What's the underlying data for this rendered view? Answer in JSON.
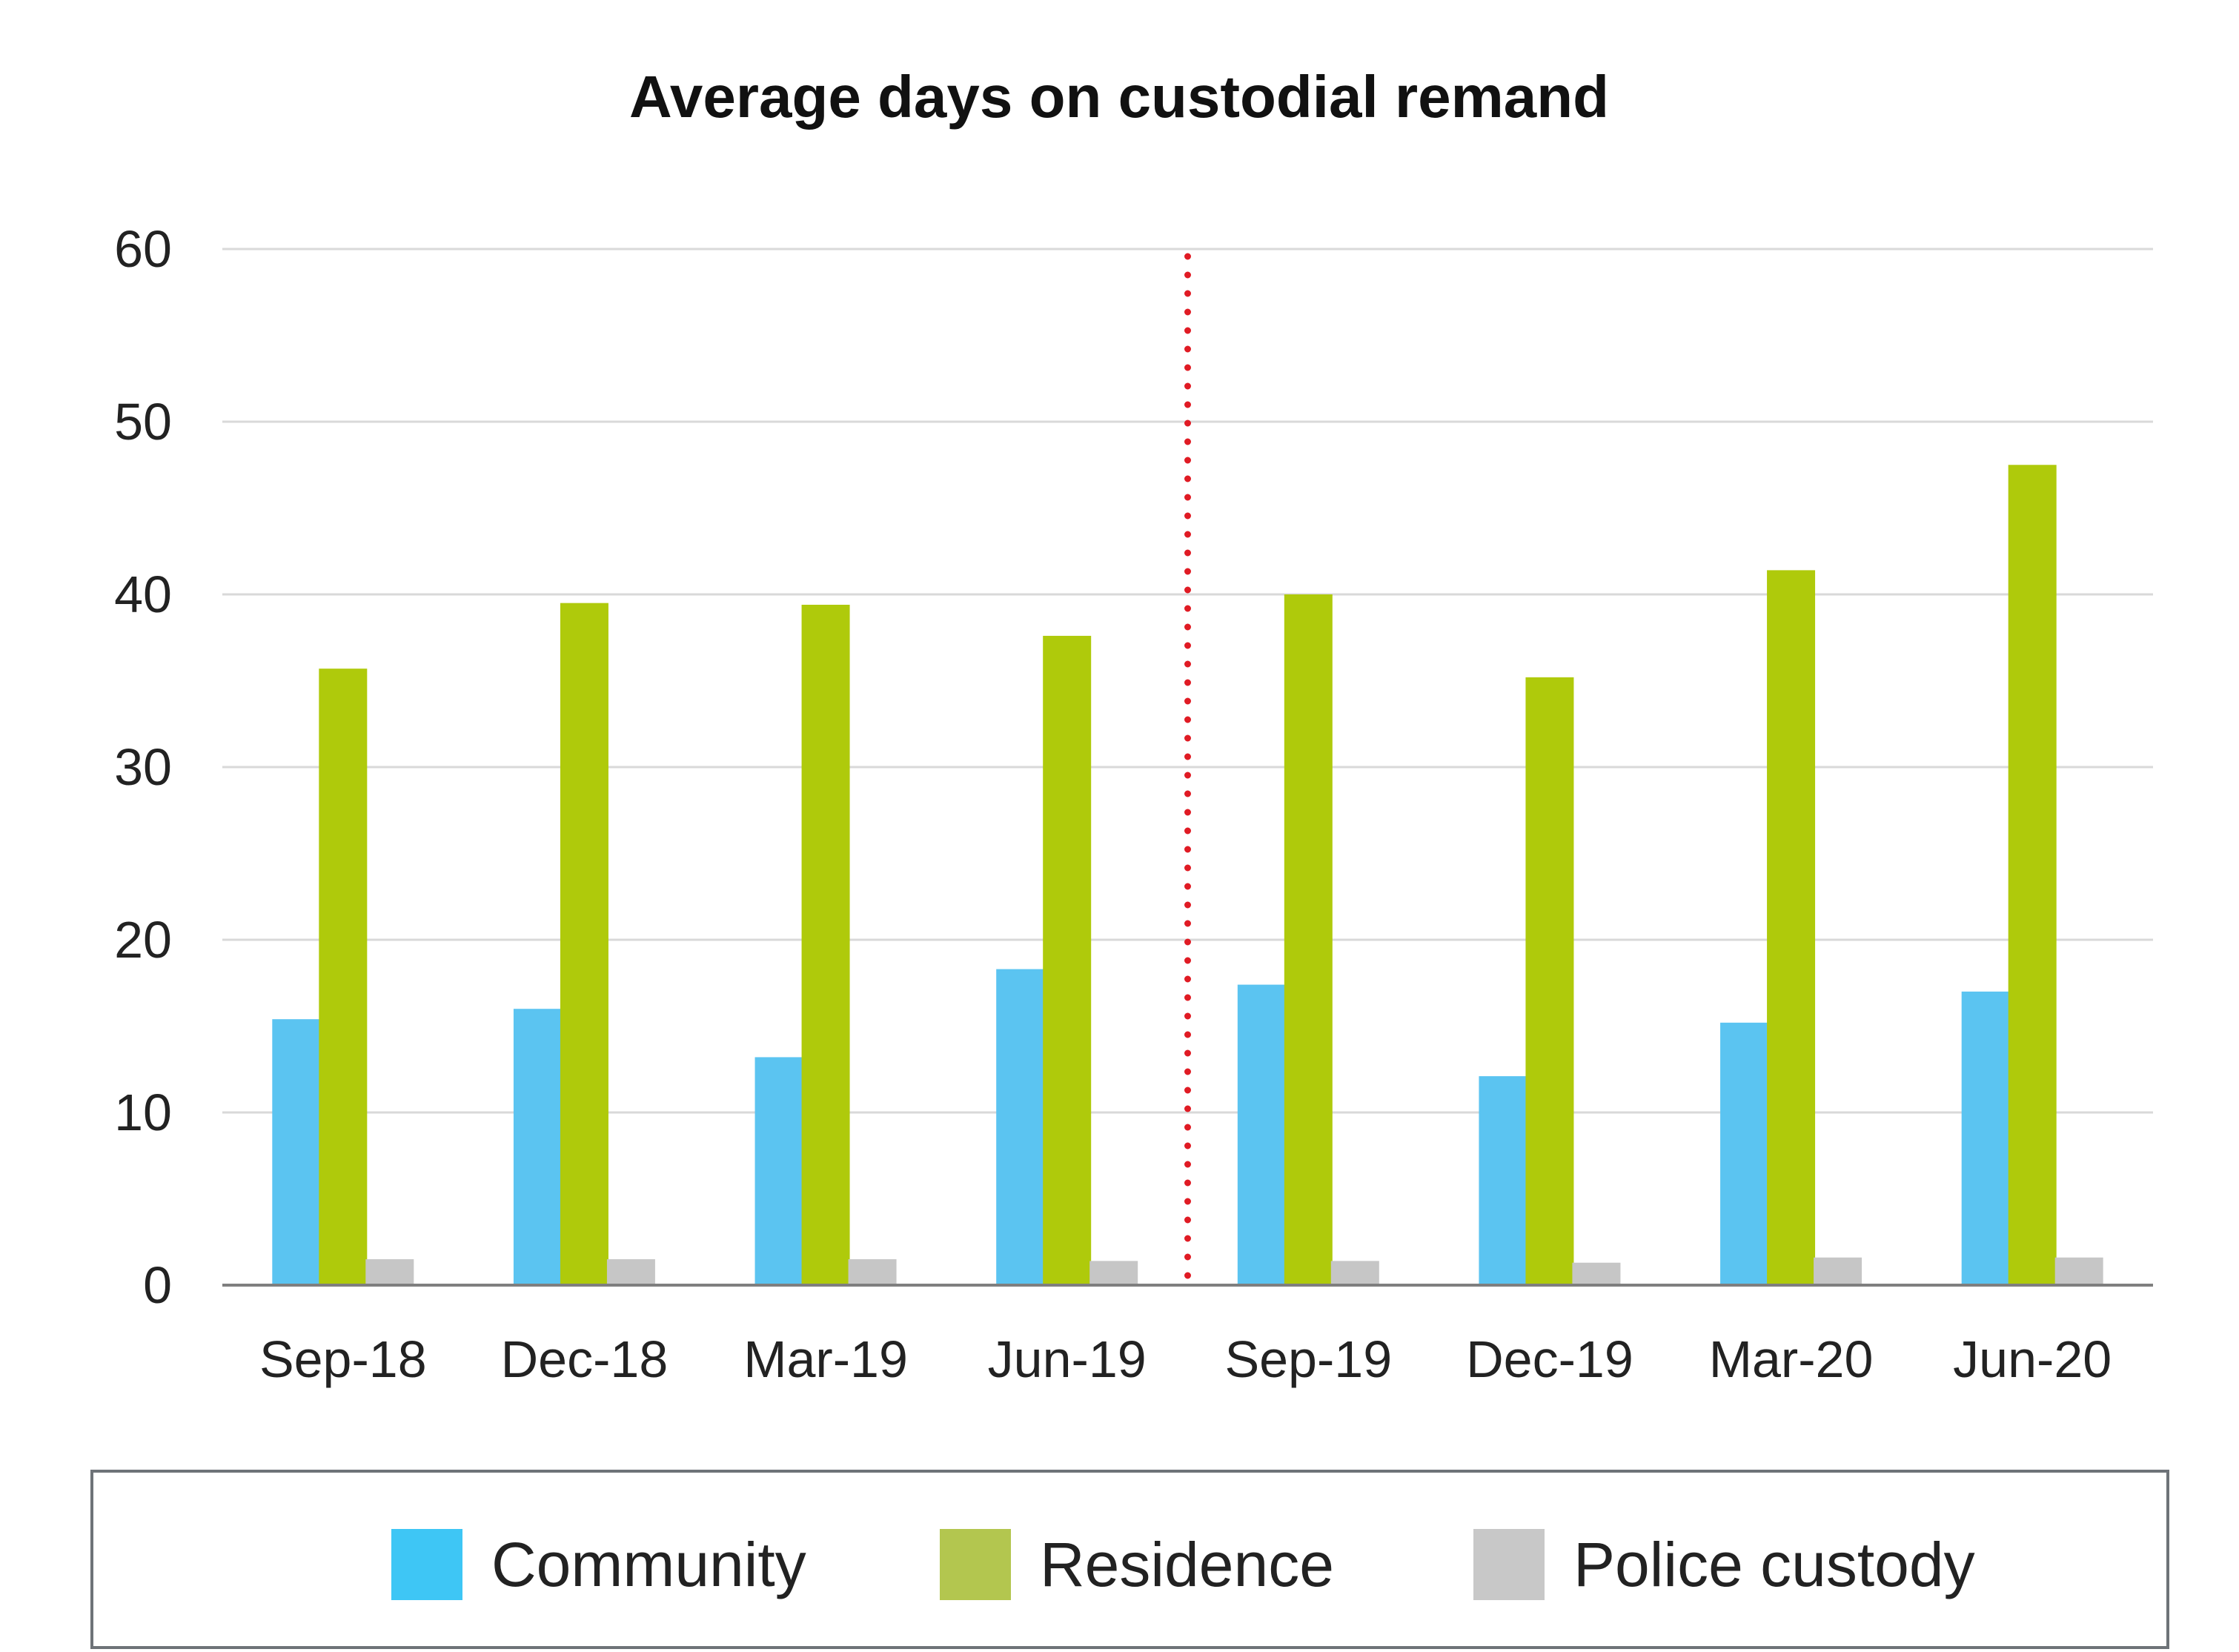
{
  "chart_data": {
    "type": "bar",
    "title": "Average days on custodial remand",
    "xlabel": "",
    "ylabel": "",
    "ylim": [
      0,
      60
    ],
    "yticks": [
      0,
      10,
      20,
      30,
      40,
      50,
      60
    ],
    "grid": true,
    "categories": [
      "Sep-18",
      "Dec-18",
      "Mar-19",
      "Jun-19",
      "Sep-19",
      "Dec-19",
      "Mar-20",
      "Jun-20"
    ],
    "series": [
      {
        "name": "Community",
        "color": "#5BC4F1",
        "legend_color": "#3EC6F5",
        "values": [
          15.4,
          16.0,
          13.2,
          18.3,
          17.4,
          12.1,
          15.2,
          17.0
        ]
      },
      {
        "name": "Residence",
        "color": "#AFCA0B",
        "legend_color": "#B3C64F",
        "values": [
          35.7,
          39.5,
          39.4,
          37.6,
          40.0,
          35.2,
          41.4,
          47.5
        ]
      },
      {
        "name": "Police custody",
        "color": "#C6C6C6",
        "legend_color": "#C8C8C8",
        "values": [
          1.5,
          1.5,
          1.5,
          1.4,
          1.4,
          1.3,
          1.6,
          1.6
        ]
      }
    ],
    "divider": {
      "after_category": "Jun-19",
      "color": "#E01B24",
      "style": "dotted"
    },
    "legend": {
      "position": "bottom"
    }
  }
}
